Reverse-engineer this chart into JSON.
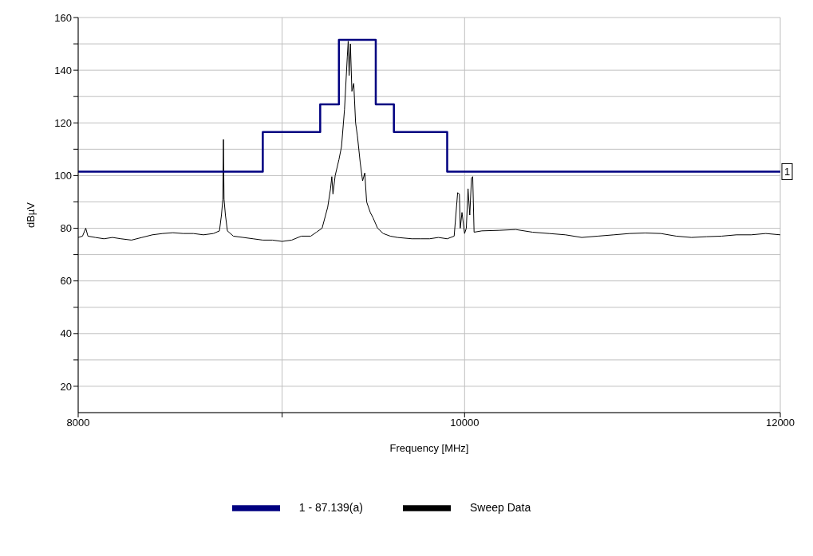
{
  "chart_data": {
    "type": "line",
    "xlabel": "Frequency [MHz]",
    "ylabel": "dBµV",
    "log": "x",
    "grid": true,
    "legend": "bottom",
    "marker": "none",
    "line_style": "solid",
    "xlim": [
      8000,
      12000
    ],
    "xticks": [
      8000,
      {
        "value": 9000,
        "label": null
      },
      10000,
      12000
    ],
    "ylim": [
      10,
      160
    ],
    "yticks": [
      20,
      {
        "value": 30,
        "label": null
      },
      40,
      {
        "value": 50,
        "label": null
      },
      60,
      {
        "value": 70,
        "label": null
      },
      80,
      {
        "value": 90,
        "label": null
      },
      100,
      {
        "value": 110,
        "label": null
      },
      120,
      {
        "value": 130,
        "label": null
      },
      140,
      {
        "value": 150,
        "label": null
      },
      160
    ],
    "annotations": [
      {
        "text": "1",
        "x": 12000,
        "y": 101.5
      }
    ],
    "series": [
      {
        "name": "Sweep Data",
        "color": "#000000",
        "x": [
          8000,
          8020,
          8035,
          8045,
          8080,
          8120,
          8160,
          8200,
          8250,
          8300,
          8350,
          8400,
          8450,
          8500,
          8550,
          8600,
          8650,
          8680,
          8690,
          8697,
          8700,
          8703,
          8710,
          8720,
          8750,
          8800,
          8850,
          8900,
          8950,
          9000,
          9050,
          9100,
          9150,
          9180,
          9210,
          9240,
          9255,
          9262,
          9268,
          9280,
          9300,
          9314,
          9330,
          9345,
          9350,
          9355,
          9362,
          9370,
          9380,
          9390,
          9400,
          9415,
          9428,
          9440,
          9450,
          9470,
          9485,
          9510,
          9541,
          9580,
          9620,
          9700,
          9750,
          9800,
          9850,
          9900,
          9940,
          9960,
          9970,
          9975,
          9985,
          10000,
          10010,
          10020,
          10030,
          10040,
          10047,
          10055,
          10100,
          10200,
          10300,
          10400,
          10500,
          10600,
          10700,
          10800,
          10900,
          11000,
          11100,
          11200,
          11300,
          11400,
          11500,
          11600,
          11700,
          11800,
          11900,
          12000
        ],
        "values": [
          76.5,
          77,
          80,
          77,
          76.5,
          76,
          76.5,
          76,
          75.5,
          76.5,
          77.5,
          78,
          78.3,
          78,
          78,
          77.5,
          78,
          79,
          85,
          91,
          113.7,
          91,
          85,
          79,
          77,
          76.5,
          76,
          75.5,
          75.5,
          75,
          75.5,
          77,
          77,
          78.5,
          80,
          88,
          95,
          99.6,
          93,
          100,
          106,
          111,
          125,
          145,
          151,
          138,
          150,
          132,
          135,
          120,
          115,
          105,
          98,
          101,
          90,
          86,
          84,
          80,
          78,
          77,
          76.5,
          76,
          76,
          76,
          76.5,
          76,
          77,
          93.5,
          93,
          80,
          86,
          78,
          80,
          95,
          85,
          99,
          99.6,
          78.5,
          79,
          79.2,
          79.5,
          78.5,
          78,
          77.5,
          76.5,
          77,
          77.5,
          78,
          78.2,
          78,
          77,
          76.5,
          76.8,
          77,
          77.5,
          77.5,
          78,
          77.5
        ]
      },
      {
        "name": "1 - 87.139(a)",
        "color": "#000080",
        "x": [
          8000,
          8900,
          8900,
          9200,
          9200,
          9300,
          9300,
          9500,
          9500,
          9600,
          9600,
          9900,
          9900,
          12000
        ],
        "values": [
          101.5,
          101.5,
          116.5,
          116.5,
          127,
          127,
          151.5,
          151.5,
          127,
          127,
          116.5,
          116.5,
          101.5,
          101.5
        ]
      }
    ]
  }
}
